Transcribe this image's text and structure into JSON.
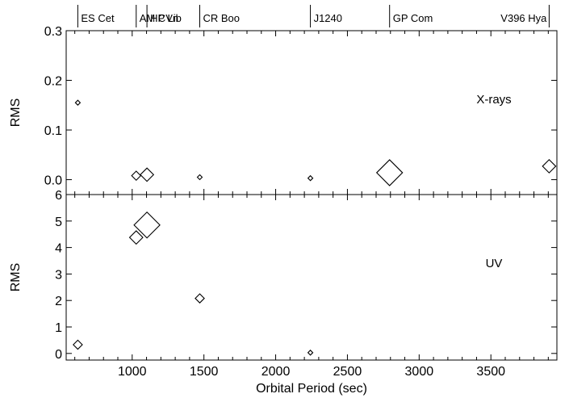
{
  "chart_data": {
    "type": "scatter",
    "marker": "diamond (size varies)",
    "xlabel": "Orbital Period (sec)",
    "x_ticks": [
      1000,
      1500,
      2000,
      2500,
      3000,
      3500
    ],
    "xlim": [
      540,
      3960
    ],
    "top_axis_stars": [
      {
        "name": "ES Cet",
        "period": 621
      },
      {
        "name": "AM CVn",
        "period": 1028
      },
      {
        "name": "HP Lib",
        "period": 1103
      },
      {
        "name": "CR Boo",
        "period": 1471
      },
      {
        "name": "J1240",
        "period": 2242
      },
      {
        "name": "GP Com",
        "period": 2794
      },
      {
        "name": "V396 Hya",
        "period": 3906
      }
    ],
    "panels": [
      {
        "label": "X-rays",
        "ylabel": "RMS",
        "ylim": [
          -0.03,
          0.3
        ],
        "y_ticks": [
          0.0,
          0.1,
          0.2,
          0.3
        ],
        "y_tick_labels": [
          "0.0",
          "0.1",
          "0.2",
          "0.3"
        ],
        "points": [
          {
            "x": 621,
            "y": 0.155,
            "size": 1
          },
          {
            "x": 1028,
            "y": 0.008,
            "size": 2
          },
          {
            "x": 1103,
            "y": 0.01,
            "size": 3
          },
          {
            "x": 1471,
            "y": 0.005,
            "size": 1
          },
          {
            "x": 2242,
            "y": 0.003,
            "size": 1
          },
          {
            "x": 2794,
            "y": 0.014,
            "size": 6
          },
          {
            "x": 3906,
            "y": 0.027,
            "size": 3
          }
        ]
      },
      {
        "label": "UV",
        "ylabel": "RMS",
        "ylim": [
          -0.25,
          6
        ],
        "y_ticks": [
          0,
          1,
          2,
          3,
          4,
          5,
          6
        ],
        "y_tick_labels": [
          "0",
          "1",
          "2",
          "3",
          "4",
          "5",
          "6"
        ],
        "points": [
          {
            "x": 621,
            "y": 0.33,
            "size": 2
          },
          {
            "x": 1028,
            "y": 4.38,
            "size": 3
          },
          {
            "x": 1103,
            "y": 4.85,
            "size": 6
          },
          {
            "x": 1471,
            "y": 2.08,
            "size": 2
          },
          {
            "x": 2242,
            "y": 0.03,
            "size": 1
          }
        ]
      }
    ]
  }
}
